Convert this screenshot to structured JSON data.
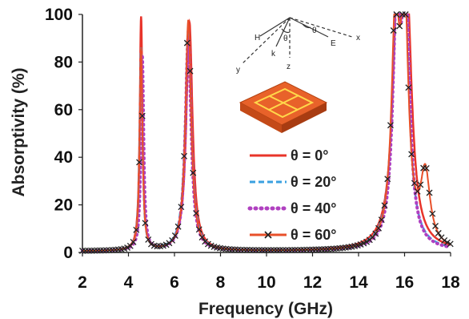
{
  "chart_data": {
    "type": "line",
    "title": "",
    "xlabel": "Frequency (GHz)",
    "ylabel": "Absorptivity (%)",
    "xlim": [
      2,
      18
    ],
    "ylim": [
      0,
      100
    ],
    "xticks": [
      "2",
      "4",
      "6",
      "8",
      "10",
      "12",
      "14",
      "16",
      "18"
    ],
    "yticks": [
      "0",
      "20",
      "40",
      "60",
      "80",
      "100"
    ],
    "grid": false,
    "legend_position": "center-right",
    "series": [
      {
        "name": "θ = 0°",
        "color": "#e8342a",
        "style": "solid",
        "peaks": [
          {
            "f0": 4.55,
            "width": 0.07,
            "height": 98
          },
          {
            "f0": 6.65,
            "width": 0.16,
            "height": 96
          },
          {
            "f0": 15.7,
            "width": 0.25,
            "height": 95
          },
          {
            "f0": 16.1,
            "width": 0.25,
            "height": 92
          }
        ]
      },
      {
        "name": "θ = 20°",
        "color": "#3aa0e0",
        "style": "dashed",
        "peaks": [
          {
            "f0": 4.55,
            "width": 0.07,
            "height": 85
          },
          {
            "f0": 6.6,
            "width": 0.16,
            "height": 94
          },
          {
            "f0": 15.65,
            "width": 0.22,
            "height": 90
          },
          {
            "f0": 16.0,
            "width": 0.22,
            "height": 98
          }
        ]
      },
      {
        "name": "θ = 40°",
        "color": "#b040c0",
        "style": "dotted",
        "peaks": [
          {
            "f0": 4.6,
            "width": 0.07,
            "height": 82
          },
          {
            "f0": 6.6,
            "width": 0.15,
            "height": 90
          },
          {
            "f0": 15.65,
            "width": 0.2,
            "height": 92
          },
          {
            "f0": 16.05,
            "width": 0.2,
            "height": 100
          }
        ]
      },
      {
        "name": "θ = 60°",
        "color": "#e8502a",
        "style": "cross",
        "peaks": [
          {
            "f0": 4.55,
            "width": 0.07,
            "height": 85
          },
          {
            "f0": 6.6,
            "width": 0.15,
            "height": 97
          },
          {
            "f0": 15.6,
            "width": 0.2,
            "height": 90
          },
          {
            "f0": 16.0,
            "width": 0.2,
            "height": 96
          },
          {
            "f0": 16.9,
            "width": 0.25,
            "height": 30
          }
        ]
      }
    ]
  },
  "inset": {
    "axis_labels": [
      "H",
      "k",
      "z",
      "y",
      "θ",
      "θ",
      "E",
      "x"
    ]
  }
}
